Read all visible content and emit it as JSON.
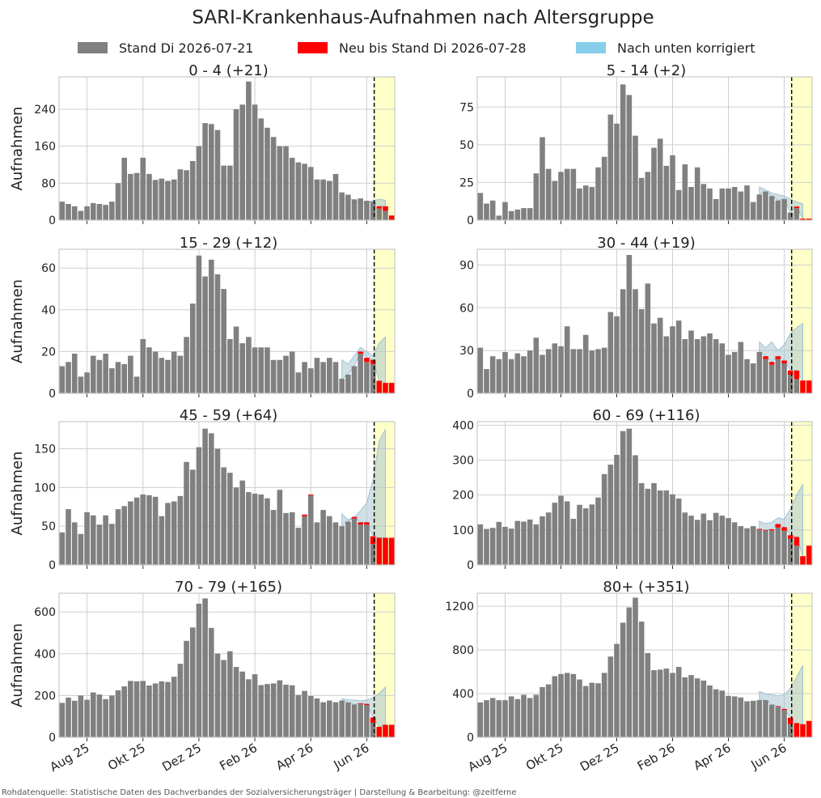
{
  "title": "SARI-Krankenhaus-Aufnahmen nach Altersgruppe",
  "legend": [
    {
      "label": "Stand Di 2026-07-21",
      "color": "#808080"
    },
    {
      "label": "Neu bis Stand Di 2026-07-28",
      "color": "#ff0000"
    },
    {
      "label": "Nach unten korrigiert",
      "color": "#87ceeb"
    }
  ],
  "source": "Rohdatenquelle: Statistische Daten des Dachverbandes der Sozialversicherungsträger | Darstellung & Bearbeitung: @zeitferne",
  "ylabel": "Aufnahmen",
  "colors": {
    "base": "#808080",
    "new": "#ff0000",
    "corrected": "#87ceeb",
    "forecast_bg": "#ffffc8",
    "nowcast": "#a9c7cf"
  },
  "chart_data": [
    {
      "type": "bar",
      "title": "0 - 4 (+21)",
      "ylim": [
        0,
        310
      ],
      "yticks": [
        0,
        80,
        160,
        240
      ],
      "x_ticks": [
        "Aug 25",
        "Okt 25",
        "Dez 25",
        "Feb 26",
        "Apr 26",
        "Jun 26"
      ],
      "base": [
        40,
        35,
        30,
        20,
        30,
        37,
        35,
        33,
        40,
        80,
        135,
        100,
        102,
        135,
        100,
        87,
        90,
        85,
        88,
        110,
        108,
        128,
        160,
        210,
        208,
        195,
        118,
        118,
        240,
        250,
        300,
        250,
        220,
        200,
        180,
        160,
        160,
        135,
        125,
        122,
        115,
        88,
        88,
        85,
        100,
        60,
        55,
        45,
        47,
        42,
        40,
        25,
        20,
        0
      ],
      "new": [
        0,
        0,
        0,
        0,
        0,
        0,
        0,
        0,
        0,
        0,
        0,
        0,
        0,
        0,
        0,
        0,
        0,
        0,
        0,
        0,
        0,
        0,
        0,
        0,
        0,
        0,
        0,
        0,
        0,
        0,
        0,
        0,
        0,
        0,
        0,
        0,
        0,
        0,
        0,
        0,
        0,
        0,
        0,
        0,
        0,
        0,
        0,
        0,
        0,
        0,
        0,
        5,
        10,
        10
      ],
      "nowcast_upper": [
        45,
        48,
        40,
        35,
        38,
        42,
        45,
        43
      ],
      "cutoff_index": 51
    },
    {
      "type": "bar",
      "title": "5 - 14 (+2)",
      "ylim": [
        0,
        95
      ],
      "yticks": [
        0,
        25,
        50,
        75
      ],
      "x_ticks": [
        "Aug 25",
        "Okt 25",
        "Dez 25",
        "Feb 26",
        "Apr 26",
        "Jun 26"
      ],
      "base": [
        18,
        11,
        13,
        3,
        12,
        6,
        7,
        8,
        8,
        31,
        55,
        34,
        26,
        32,
        34,
        34,
        21,
        23,
        22,
        35,
        42,
        70,
        64,
        90,
        83,
        56,
        28,
        32,
        48,
        54,
        36,
        43,
        20,
        37,
        22,
        35,
        24,
        21,
        14,
        21,
        21,
        22,
        19,
        23,
        12,
        17,
        19,
        16,
        13,
        14,
        5,
        8,
        0,
        0
      ],
      "new": [
        0,
        0,
        0,
        0,
        0,
        0,
        0,
        0,
        0,
        0,
        0,
        0,
        0,
        0,
        0,
        0,
        0,
        0,
        0,
        0,
        0,
        0,
        0,
        0,
        0,
        0,
        0,
        0,
        0,
        0,
        0,
        0,
        0,
        0,
        0,
        0,
        0,
        0,
        0,
        0,
        0,
        0,
        0,
        0,
        0,
        0,
        0,
        0,
        0,
        0,
        0,
        1,
        1,
        1
      ],
      "nowcast_upper": [
        22,
        20,
        18,
        17,
        16,
        14,
        12,
        11
      ],
      "cutoff_index": 51
    },
    {
      "type": "bar",
      "title": "15 - 29 (+12)",
      "ylim": [
        0,
        69
      ],
      "yticks": [
        0,
        20,
        40,
        60
      ],
      "x_ticks": [
        "Aug 25",
        "Okt 25",
        "Dez 25",
        "Feb 26",
        "Apr 26",
        "Jun 26"
      ],
      "base": [
        13,
        15,
        19,
        8,
        10,
        18,
        16,
        19,
        12,
        15,
        14,
        18,
        8,
        26,
        22,
        20,
        17,
        16,
        20,
        18,
        27,
        43,
        66,
        56,
        64,
        57,
        50,
        26,
        32,
        24,
        27,
        22,
        22,
        22,
        16,
        16,
        18,
        20,
        10,
        15,
        12,
        17,
        15,
        17,
        15,
        7,
        9,
        13,
        19,
        15,
        14,
        0,
        0,
        0
      ],
      "new": [
        0,
        0,
        0,
        0,
        0,
        0,
        0,
        0,
        0,
        0,
        0,
        0,
        0,
        0,
        0,
        0,
        0,
        0,
        0,
        0,
        0,
        0,
        0,
        0,
        0,
        0,
        0,
        0,
        0,
        0,
        0,
        0,
        0,
        0,
        0,
        0,
        0,
        0,
        0,
        0,
        0,
        0,
        0,
        0,
        0,
        0,
        0,
        0,
        1,
        2,
        2,
        6,
        5,
        5
      ],
      "nowcast_upper": [
        16,
        14,
        18,
        22,
        20,
        18,
        24,
        27
      ],
      "cutoff_index": 51
    },
    {
      "type": "bar",
      "title": "30 - 44 (+19)",
      "ylim": [
        0,
        101
      ],
      "yticks": [
        0,
        30,
        60,
        90
      ],
      "x_ticks": [
        "Aug 25",
        "Okt 25",
        "Dez 25",
        "Feb 26",
        "Apr 26",
        "Jun 26"
      ],
      "base": [
        32,
        17,
        26,
        24,
        29,
        24,
        28,
        26,
        30,
        39,
        27,
        31,
        35,
        33,
        47,
        31,
        31,
        41,
        30,
        31,
        32,
        57,
        54,
        73,
        97,
        73,
        59,
        77,
        49,
        53,
        40,
        47,
        51,
        38,
        44,
        38,
        40,
        42,
        38,
        35,
        27,
        29,
        36,
        24,
        21,
        29,
        24,
        20,
        24,
        21,
        13,
        10,
        0,
        0
      ],
      "new": [
        0,
        0,
        0,
        0,
        0,
        0,
        0,
        0,
        0,
        0,
        0,
        0,
        0,
        0,
        0,
        0,
        0,
        0,
        0,
        0,
        0,
        0,
        0,
        0,
        0,
        0,
        0,
        0,
        0,
        0,
        0,
        0,
        0,
        0,
        0,
        0,
        0,
        0,
        0,
        0,
        0,
        0,
        0,
        0,
        0,
        0,
        2,
        2,
        2,
        2,
        3,
        6,
        9,
        9
      ],
      "nowcast_upper": [
        36,
        32,
        36,
        30,
        34,
        42,
        46,
        49
      ],
      "cutoff_index": 51
    },
    {
      "type": "bar",
      "title": "45 - 59 (+64)",
      "ylim": [
        0,
        185
      ],
      "yticks": [
        0,
        50,
        100,
        150
      ],
      "x_ticks": [
        "Aug 25",
        "Okt 25",
        "Dez 25",
        "Feb 26",
        "Apr 26",
        "Jun 26"
      ],
      "base": [
        42,
        72,
        55,
        40,
        68,
        64,
        52,
        64,
        53,
        72,
        76,
        82,
        87,
        91,
        90,
        88,
        63,
        80,
        82,
        89,
        133,
        123,
        152,
        176,
        170,
        150,
        126,
        119,
        100,
        109,
        94,
        92,
        91,
        86,
        71,
        97,
        67,
        68,
        48,
        63,
        90,
        55,
        71,
        63,
        55,
        50,
        56,
        60,
        52,
        52,
        27,
        0,
        0,
        0
      ],
      "new": [
        0,
        0,
        0,
        0,
        0,
        0,
        0,
        0,
        0,
        0,
        0,
        0,
        0,
        0,
        0,
        0,
        0,
        0,
        0,
        0,
        0,
        0,
        0,
        0,
        0,
        0,
        0,
        0,
        0,
        0,
        0,
        0,
        0,
        0,
        0,
        0,
        0,
        0,
        0,
        2,
        1,
        0,
        0,
        0,
        0,
        0,
        0,
        2,
        3,
        3,
        10,
        35,
        35,
        35
      ],
      "nowcast_upper": [
        66,
        58,
        62,
        70,
        80,
        110,
        160,
        175
      ],
      "cutoff_index": 51
    },
    {
      "type": "bar",
      "title": "60 - 69 (+116)",
      "ylim": [
        0,
        410
      ],
      "yticks": [
        0,
        100,
        200,
        300,
        400
      ],
      "x_ticks": [
        "Aug 25",
        "Okt 25",
        "Dez 25",
        "Feb 26",
        "Apr 26",
        "Jun 26"
      ],
      "base": [
        116,
        103,
        106,
        123,
        109,
        104,
        126,
        124,
        130,
        116,
        139,
        150,
        178,
        198,
        182,
        132,
        172,
        162,
        173,
        193,
        260,
        287,
        315,
        383,
        390,
        314,
        234,
        218,
        234,
        213,
        213,
        202,
        190,
        150,
        141,
        129,
        147,
        128,
        149,
        141,
        134,
        122,
        111,
        105,
        111,
        101,
        98,
        99,
        107,
        98,
        75,
        55,
        0,
        0
      ],
      "new": [
        0,
        0,
        0,
        0,
        0,
        0,
        0,
        0,
        0,
        0,
        0,
        0,
        0,
        0,
        0,
        0,
        0,
        0,
        0,
        0,
        0,
        0,
        0,
        0,
        0,
        0,
        0,
        0,
        0,
        0,
        0,
        0,
        0,
        0,
        0,
        0,
        0,
        0,
        0,
        0,
        0,
        0,
        0,
        0,
        0,
        2,
        2,
        3,
        10,
        10,
        10,
        25,
        25,
        55
      ],
      "nowcast_upper": [
        125,
        118,
        122,
        135,
        130,
        160,
        200,
        230
      ],
      "cutoff_index": 51
    },
    {
      "type": "bar",
      "title": "70 - 79 (+165)",
      "ylim": [
        0,
        690
      ],
      "yticks": [
        0,
        200,
        400,
        600
      ],
      "x_ticks": [
        "Aug 25",
        "Okt 25",
        "Dez 25",
        "Feb 26",
        "Apr 26",
        "Jun 26"
      ],
      "base": [
        165,
        190,
        175,
        200,
        180,
        215,
        205,
        183,
        200,
        225,
        244,
        270,
        268,
        270,
        248,
        258,
        268,
        265,
        290,
        352,
        462,
        526,
        640,
        665,
        524,
        401,
        370,
        412,
        337,
        315,
        278,
        302,
        250,
        255,
        258,
        273,
        252,
        249,
        203,
        222,
        198,
        186,
        168,
        176,
        168,
        176,
        167,
        157,
        160,
        155,
        70,
        0,
        0,
        0
      ],
      "new": [
        0,
        0,
        0,
        0,
        0,
        0,
        0,
        0,
        0,
        0,
        0,
        0,
        0,
        0,
        0,
        0,
        0,
        0,
        0,
        0,
        0,
        0,
        0,
        0,
        0,
        0,
        0,
        0,
        0,
        0,
        0,
        0,
        0,
        0,
        0,
        0,
        0,
        0,
        0,
        0,
        0,
        0,
        0,
        0,
        0,
        0,
        0,
        0,
        3,
        5,
        25,
        50,
        60,
        60
      ],
      "nowcast_upper": [
        185,
        180,
        178,
        175,
        178,
        190,
        210,
        240
      ],
      "cutoff_index": 51
    },
    {
      "type": "bar",
      "title": "80+ (+351)",
      "ylim": [
        0,
        1320
      ],
      "yticks": [
        0,
        400,
        800,
        1200
      ],
      "x_ticks": [
        "Aug 25",
        "Okt 25",
        "Dez 25",
        "Feb 26",
        "Apr 26",
        "Jun 26"
      ],
      "base": [
        320,
        340,
        360,
        340,
        340,
        375,
        350,
        390,
        360,
        390,
        460,
        485,
        560,
        580,
        590,
        580,
        530,
        470,
        500,
        495,
        590,
        740,
        856,
        1050,
        1190,
        1280,
        1060,
        772,
        615,
        620,
        630,
        590,
        645,
        550,
        570,
        540,
        520,
        475,
        440,
        428,
        380,
        375,
        365,
        330,
        335,
        340,
        340,
        300,
        280,
        250,
        120,
        0,
        0,
        0
      ],
      "new": [
        0,
        0,
        0,
        0,
        0,
        0,
        0,
        0,
        0,
        0,
        0,
        0,
        0,
        0,
        0,
        0,
        0,
        0,
        0,
        0,
        0,
        0,
        0,
        0,
        0,
        0,
        0,
        0,
        0,
        0,
        0,
        0,
        0,
        0,
        0,
        0,
        0,
        0,
        0,
        0,
        0,
        0,
        0,
        0,
        0,
        0,
        0,
        0,
        5,
        10,
        60,
        130,
        120,
        150
      ],
      "nowcast_upper": [
        420,
        400,
        390,
        380,
        390,
        450,
        550,
        660
      ],
      "cutoff_index": 51
    }
  ]
}
